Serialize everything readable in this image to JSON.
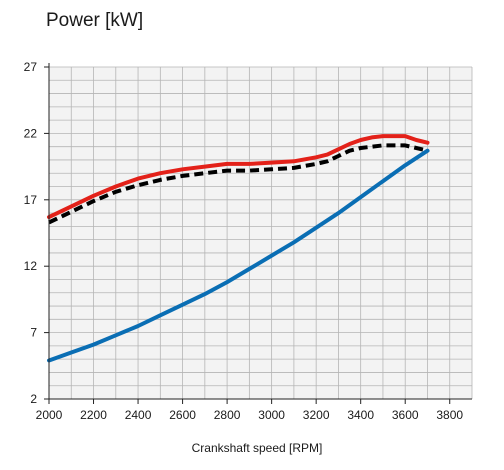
{
  "chart_data": {
    "type": "line",
    "title": "Power [kW]",
    "xlabel": "Crankshaft speed [RPM]",
    "ylabel": "",
    "xlim": [
      2000,
      3900
    ],
    "ylim": [
      2,
      27
    ],
    "x_ticks": [
      2000,
      2200,
      2400,
      2600,
      2800,
      3000,
      3200,
      3400,
      3600,
      3800
    ],
    "y_ticks": [
      2,
      7,
      12,
      17,
      22,
      27
    ],
    "grid": true,
    "legend": "none",
    "series": [
      {
        "color": "#e32119",
        "style": "solid",
        "x": [
          2000,
          2100,
          2200,
          2300,
          2400,
          2500,
          2600,
          2700,
          2800,
          2900,
          3000,
          3100,
          3200,
          3250,
          3300,
          3350,
          3400,
          3450,
          3500,
          3550,
          3600,
          3650,
          3700
        ],
        "y": [
          15.7,
          16.5,
          17.3,
          18.0,
          18.6,
          19.0,
          19.3,
          19.5,
          19.7,
          19.7,
          19.8,
          19.9,
          20.2,
          20.4,
          20.8,
          21.2,
          21.5,
          21.7,
          21.8,
          21.8,
          21.8,
          21.5,
          21.3
        ]
      },
      {
        "color": "#000000",
        "style": "dashed",
        "x": [
          2000,
          2100,
          2200,
          2300,
          2400,
          2500,
          2600,
          2700,
          2800,
          2900,
          3000,
          3100,
          3200,
          3250,
          3300,
          3350,
          3400,
          3450,
          3500,
          3550,
          3600,
          3650,
          3700
        ],
        "y": [
          15.3,
          16.1,
          16.9,
          17.6,
          18.1,
          18.5,
          18.8,
          19.0,
          19.2,
          19.2,
          19.3,
          19.4,
          19.7,
          19.9,
          20.3,
          20.7,
          20.9,
          21.0,
          21.1,
          21.1,
          21.1,
          20.9,
          20.7
        ]
      },
      {
        "color": "#0a6eb4",
        "style": "solid",
        "x": [
          2000,
          2100,
          2200,
          2300,
          2400,
          2500,
          2600,
          2700,
          2800,
          2900,
          3000,
          3100,
          3200,
          3300,
          3400,
          3500,
          3600,
          3700
        ],
        "y": [
          4.9,
          5.5,
          6.1,
          6.8,
          7.5,
          8.3,
          9.1,
          9.9,
          10.8,
          11.8,
          12.8,
          13.8,
          14.9,
          16.0,
          17.2,
          18.4,
          19.6,
          20.7
        ]
      }
    ]
  }
}
